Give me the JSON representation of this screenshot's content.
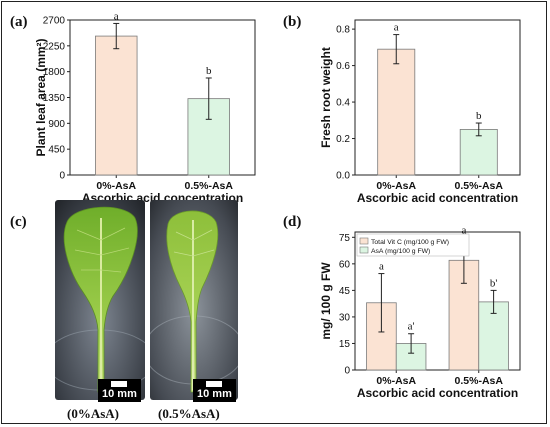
{
  "panels": {
    "a": "(a)",
    "b": "(b)",
    "c": "(c)",
    "d": "(d)"
  },
  "photos": {
    "left_caption": "(0%AsA)",
    "right_caption": "(0.5%AsA)",
    "scale_label": "10 mm"
  },
  "colors": {
    "orange_fill": "#fbe3d3",
    "green_fill": "#dcf5e2",
    "bar_stroke": "#7a7a7a",
    "text": "#111111"
  },
  "chart_data": [
    {
      "id": "a",
      "type": "bar",
      "categories": [
        "0%-AsA",
        "0.5%-AsA"
      ],
      "values": [
        2420,
        1330
      ],
      "errors": [
        220,
        360
      ],
      "letters": [
        "a",
        "b"
      ],
      "ylabel": "Plant leaf area (mm²)",
      "xlabel": "Ascorbic acid concentration",
      "ylim": [
        0,
        2700
      ],
      "yticks": [
        "0",
        "450",
        "900",
        "1350",
        "1800",
        "2250",
        "2700"
      ],
      "ytick_values": [
        0,
        450,
        900,
        1350,
        1800,
        2250,
        2700
      ]
    },
    {
      "id": "b",
      "type": "bar",
      "categories": [
        "0%-AsA",
        "0.5%-AsA"
      ],
      "values": [
        0.69,
        0.25
      ],
      "errors": [
        0.08,
        0.035
      ],
      "letters": [
        "a",
        "b"
      ],
      "ylabel": "Fresh root weight",
      "xlabel": "Ascorbic acid concentration",
      "ylim": [
        0,
        0.85
      ],
      "yticks": [
        "0.0",
        "0.2",
        "0.4",
        "0.6",
        "0.8"
      ],
      "ytick_values": [
        0,
        0.2,
        0.4,
        0.6,
        0.8
      ]
    },
    {
      "id": "d",
      "type": "bar",
      "categories": [
        "0%-AsA",
        "0.5%-AsA"
      ],
      "series": [
        {
          "name": "Total Vit C (mg/100 g FW)",
          "values": [
            38,
            62
          ],
          "errors": [
            16.5,
            13
          ],
          "letters": [
            "a",
            "a"
          ]
        },
        {
          "name": "AsA (mg/100 g FW)",
          "values": [
            15,
            38.5
          ],
          "errors": [
            5.5,
            6.5
          ],
          "letters": [
            "a'",
            "b'"
          ]
        }
      ],
      "ylabel": "mg/ 100 g FW",
      "xlabel": "Ascorbic acid concentration",
      "ylim": [
        0,
        78
      ],
      "yticks": [
        "0",
        "15",
        "30",
        "45",
        "60",
        "75"
      ],
      "ytick_values": [
        0,
        15,
        30,
        45,
        60,
        75
      ],
      "legend": "top-left"
    }
  ]
}
